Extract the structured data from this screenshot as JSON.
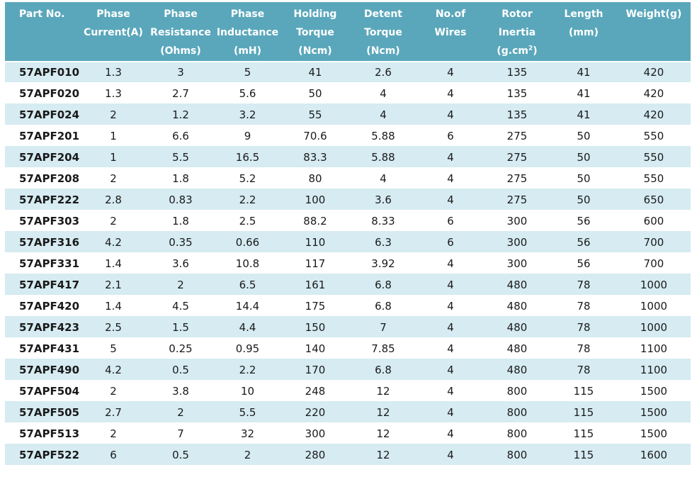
{
  "headers": [
    {
      "lines": [
        "Part No."
      ]
    },
    {
      "lines": [
        "Phase",
        "Current(A)"
      ]
    },
    {
      "lines": [
        "Phase",
        "Resistance",
        "(Ohms)"
      ]
    },
    {
      "lines": [
        "Phase",
        "Inductance",
        "(mH)"
      ]
    },
    {
      "lines": [
        "Holding",
        "Torque",
        "(Ncm)"
      ]
    },
    {
      "lines": [
        "Detent",
        "Torque",
        "(Ncm)"
      ]
    },
    {
      "lines": [
        "No.of",
        "Wires"
      ]
    },
    {
      "lines": [
        "Rotor",
        "Inertia",
        "(g.cm",
        ")"
      ],
      "sup": "2"
    },
    {
      "lines": [
        "Length",
        "(mm)"
      ]
    },
    {
      "lines": [
        "Weight(g)"
      ]
    }
  ],
  "rows": [
    [
      "57APF010",
      "1.3",
      "3",
      "5",
      "41",
      "2.6",
      "4",
      "135",
      "41",
      "420"
    ],
    [
      "57APF020",
      "1.3",
      "2.7",
      "5.6",
      "50",
      "4",
      "4",
      "135",
      "41",
      "420"
    ],
    [
      "57APF024",
      "2",
      "1.2",
      "3.2",
      "55",
      "4",
      "4",
      "135",
      "41",
      "420"
    ],
    [
      "57APF201",
      "1",
      "6.6",
      "9",
      "70.6",
      "5.88",
      "6",
      "275",
      "50",
      "550"
    ],
    [
      "57APF204",
      "1",
      "5.5",
      "16.5",
      "83.3",
      "5.88",
      "4",
      "275",
      "50",
      "550"
    ],
    [
      "57APF208",
      "2",
      "1.8",
      "5.2",
      "80",
      "4",
      "4",
      "275",
      "50",
      "550"
    ],
    [
      "57APF222",
      "2.8",
      "0.83",
      "2.2",
      "100",
      "3.6",
      "4",
      "275",
      "50",
      "650"
    ],
    [
      "57APF303",
      "2",
      "1.8",
      "2.5",
      "88.2",
      "8.33",
      "6",
      "300",
      "56",
      "600"
    ],
    [
      "57APF316",
      "4.2",
      "0.35",
      "0.66",
      "110",
      "6.3",
      "6",
      "300",
      "56",
      "700"
    ],
    [
      "57APF331",
      "1.4",
      "3.6",
      "10.8",
      "117",
      "3.92",
      "4",
      "300",
      "56",
      "700"
    ],
    [
      "57APF417",
      "2.1",
      "2",
      "6.5",
      "161",
      "6.8",
      "4",
      "480",
      "78",
      "1000"
    ],
    [
      "57APF420",
      "1.4",
      "4.5",
      "14.4",
      "175",
      "6.8",
      "4",
      "480",
      "78",
      "1000"
    ],
    [
      "57APF423",
      "2.5",
      "1.5",
      "4.4",
      "150",
      "7",
      "4",
      "480",
      "78",
      "1000"
    ],
    [
      "57APF431",
      "5",
      "0.25",
      "0.95",
      "140",
      "7.85",
      "4",
      "480",
      "78",
      "1100"
    ],
    [
      "57APF490",
      "4.2",
      "0.5",
      "2.2",
      "170",
      "6.8",
      "4",
      "480",
      "78",
      "1100"
    ],
    [
      "57APF504",
      "2",
      "3.8",
      "10",
      "248",
      "12",
      "4",
      "800",
      "115",
      "1500"
    ],
    [
      "57APF505",
      "2.7",
      "2",
      "5.5",
      "220",
      "12",
      "4",
      "800",
      "115",
      "1500"
    ],
    [
      "57APF513",
      "2",
      "7",
      "32",
      "300",
      "12",
      "4",
      "800",
      "115",
      "1500"
    ],
    [
      "57APF522",
      "6",
      "0.5",
      "2",
      "280",
      "12",
      "4",
      "800",
      "115",
      "1600"
    ]
  ],
  "colors": {
    "header_bg": "#5aa7bb",
    "stripe_bg": "#d6ebf2",
    "header_text": "#ffffff"
  }
}
